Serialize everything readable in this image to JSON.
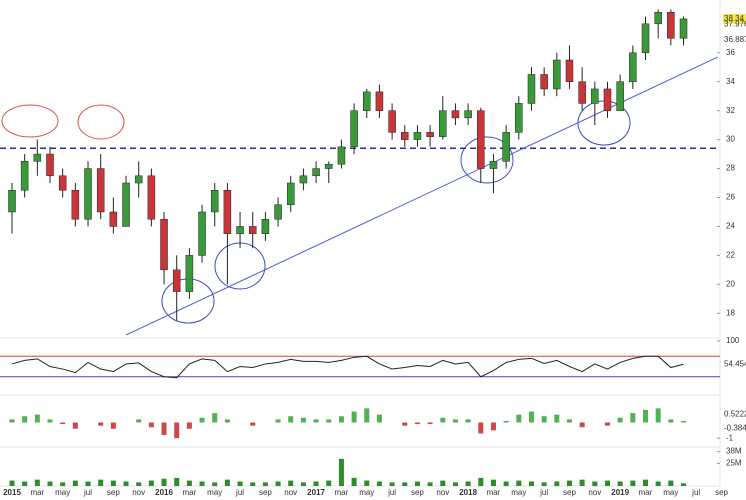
{
  "chart_data": [
    {
      "type": "candlestick",
      "categories": [
        "2015",
        null,
        "mar",
        null,
        "may",
        null,
        "jul",
        null,
        "sep",
        null,
        "nov",
        null,
        "2016",
        null,
        "mar",
        null,
        "may",
        null,
        "jul",
        null,
        "sep",
        null,
        "nov",
        null,
        "2017",
        null,
        "mar",
        null,
        "may",
        null,
        "jul",
        null,
        "sep",
        null,
        "nov",
        null,
        "2018",
        null,
        "mar",
        null,
        "may",
        null,
        "jul",
        null,
        "sep",
        null,
        "nov",
        null,
        "2019",
        null,
        "mar",
        null,
        "may",
        null,
        "jul",
        null,
        "sep"
      ],
      "open": [
        25,
        26.5,
        28.5,
        29,
        27.5,
        26.5,
        24.5,
        28,
        25,
        24,
        27,
        27.5,
        24.5,
        21,
        19.5,
        22,
        25,
        26.5,
        23.5,
        24,
        23.5,
        24.5,
        25.5,
        27,
        27.5,
        28,
        28.3,
        29.5,
        32,
        33.3,
        32,
        30.5,
        30,
        30.5,
        30.2,
        32,
        31.5,
        32,
        28,
        28.5,
        30.5,
        32.5,
        34.5,
        33.5,
        35.5,
        34,
        32.5,
        33.5,
        32,
        34,
        36,
        38,
        38.8,
        37,
        null,
        null,
        null
      ],
      "high": [
        27,
        29,
        30,
        29.5,
        28,
        27,
        28.5,
        29,
        26,
        27.5,
        28.5,
        28,
        25,
        22,
        22.5,
        25.5,
        27,
        27,
        25,
        25,
        25,
        26,
        27.5,
        28,
        28.5,
        28.5,
        30,
        32.5,
        33.5,
        33.8,
        32.5,
        31,
        31,
        31,
        33,
        32.5,
        32.5,
        32.2,
        29,
        31,
        33,
        35,
        35,
        36,
        36.5,
        35,
        34,
        34,
        34.5,
        36.5,
        38.5,
        39,
        39,
        38.5,
        null,
        null,
        null
      ],
      "low": [
        23.5,
        26,
        27.5,
        27,
        26,
        24,
        24,
        24.5,
        23.5,
        24,
        26,
        24,
        20,
        17.5,
        19,
        21.5,
        24,
        20,
        22.5,
        22.5,
        23,
        24,
        25,
        26.5,
        27,
        27,
        28,
        29,
        31.5,
        31.5,
        30,
        29.5,
        29.5,
        29.5,
        30,
        31,
        31,
        27,
        26.3,
        28,
        30,
        32,
        33,
        33,
        33.5,
        32,
        31,
        31.5,
        32,
        33.5,
        35.5,
        37,
        36.5,
        36.5,
        null,
        null,
        null
      ],
      "close": [
        26.5,
        28.5,
        29,
        27.5,
        26.5,
        24.5,
        28,
        25,
        24,
        27,
        27.5,
        24.5,
        21,
        19.5,
        22,
        25,
        26.5,
        23.5,
        24,
        23.5,
        24.5,
        25.5,
        27,
        27.5,
        28,
        28.3,
        29.5,
        32,
        33.3,
        32,
        30.5,
        30,
        30.5,
        30.2,
        32,
        31.5,
        32,
        28,
        28.5,
        30.5,
        32.5,
        34.5,
        33.5,
        35.5,
        34,
        32.5,
        33.5,
        32,
        34,
        36,
        38,
        38.8,
        37,
        38.34,
        null,
        null,
        null
      ],
      "up_color": "#3a9a3a",
      "down_color": "#c8363a",
      "ylim": [
        16.5,
        39.3
      ],
      "yticks": [
        18,
        20,
        22,
        24,
        26,
        28,
        30,
        32,
        34,
        36
      ],
      "right_labels": [
        {
          "value": 38.34,
          "label": "38.34"
        },
        {
          "value": 37.976,
          "label": "37.976"
        },
        {
          "value": 36.887,
          "label": "36.887"
        }
      ],
      "hline": 29.4,
      "trendline": {
        "x": [
          9,
          55.7
        ],
        "y": [
          16.5,
          35.7
        ]
      }
    },
    {
      "type": "line",
      "values": [
        55,
        62,
        65,
        50,
        45,
        38,
        58,
        45,
        40,
        55,
        57,
        40,
        30,
        28,
        55,
        65,
        62,
        40,
        50,
        48,
        55,
        58,
        64,
        60,
        60,
        58,
        62,
        68,
        70,
        55,
        45,
        48,
        52,
        50,
        62,
        55,
        58,
        30,
        42,
        58,
        64,
        66,
        56,
        62,
        50,
        40,
        55,
        45,
        58,
        66,
        70,
        70,
        48,
        54.454,
        null,
        null,
        null
      ],
      "color": "#222222",
      "ylim": [
        0,
        100
      ],
      "yticks": [
        100
      ],
      "levels": [
        70,
        30
      ],
      "right_labels": [
        {
          "value": 54.454,
          "label": "54.454"
        }
      ]
    },
    {
      "type": "bar",
      "values": [
        0.2,
        0.4,
        0.5,
        0.2,
        -0.1,
        -0.4,
        0,
        -0.2,
        -0.4,
        0,
        0.2,
        -0.3,
        -0.8,
        -1,
        -0.4,
        0.3,
        0.6,
        0.2,
        0,
        -0.2,
        0,
        0.2,
        0.4,
        0.3,
        0.2,
        0.2,
        0.4,
        0.7,
        0.9,
        0.5,
        0,
        -0.2,
        -0.1,
        -0.1,
        0.3,
        0.2,
        0.2,
        -0.7,
        -0.5,
        0.1,
        0.5,
        0.7,
        0.4,
        0.5,
        0.2,
        -0.3,
        0,
        -0.2,
        0.3,
        0.6,
        0.8,
        0.9,
        0.2,
        0.1,
        null,
        null,
        null
      ],
      "up_color": "#52b152",
      "down_color": "#d0474a",
      "ylim": [
        -1.5,
        1.5
      ],
      "yticks": [
        -1
      ],
      "right_labels": [
        {
          "value": 0.5222,
          "label": "0.5222"
        },
        {
          "value": -0.384,
          "label": "-0.384"
        }
      ]
    },
    {
      "type": "bar",
      "values": [
        6000000,
        5000000,
        7000000,
        5000000,
        4000000,
        6000000,
        5000000,
        7000000,
        6000000,
        5000000,
        4000000,
        6000000,
        8000000,
        9000000,
        6000000,
        5000000,
        4000000,
        7000000,
        5000000,
        4000000,
        4000000,
        5000000,
        6000000,
        4000000,
        5000000,
        6000000,
        30000000,
        9000000,
        6000000,
        5000000,
        4000000,
        4000000,
        5000000,
        4000000,
        6000000,
        4000000,
        5000000,
        9000000,
        7000000,
        5000000,
        6000000,
        5000000,
        4000000,
        5000000,
        6000000,
        7000000,
        5000000,
        6000000,
        5000000,
        6000000,
        7000000,
        5000000,
        6000000,
        3000000,
        null,
        null,
        null
      ],
      "color": "#2e8b2e",
      "ylim": [
        0,
        42000000
      ],
      "yticks": [
        {
          "value": 38000000,
          "label": "38M"
        },
        {
          "value": 25000000,
          "label": "25M"
        }
      ]
    }
  ]
}
